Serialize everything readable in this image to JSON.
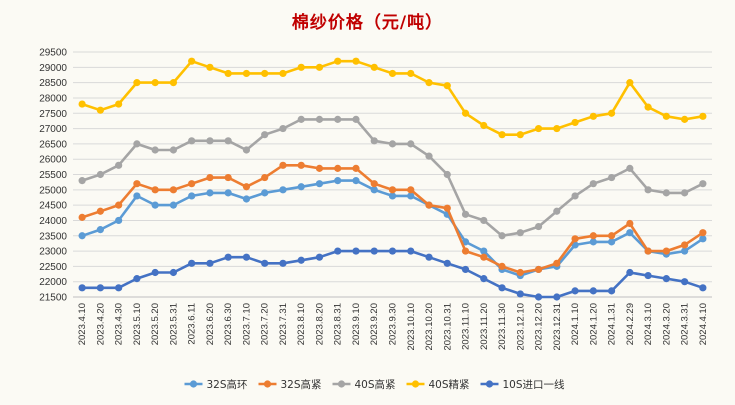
{
  "chart_data": {
    "type": "line",
    "title": "棉纱价格（元/吨）",
    "xlabel": "",
    "ylabel": "",
    "ylim": [
      21500,
      29500
    ],
    "yticks": [
      21500,
      22000,
      22500,
      23000,
      23500,
      24000,
      24500,
      25000,
      25500,
      26000,
      26500,
      27000,
      27500,
      28000,
      28500,
      29000,
      29500
    ],
    "grid": true,
    "legend_position": "bottom",
    "categories": [
      "2023.4.10",
      "2023.4.20",
      "2023.4.30",
      "2023.5.10",
      "2023.5.20",
      "2023.5.31",
      "2023.6.11",
      "2023.6.20",
      "2023.6.30",
      "2023.7.10",
      "2023.7.20",
      "2023.7.31",
      "2023.8.10",
      "2023.8.20",
      "2023.8.31",
      "2023.9.10",
      "2023.9.20",
      "2023.9.30",
      "2023.10.10",
      "2023.10.20",
      "2023.10.31",
      "2023.11.10",
      "2023.11.20",
      "2023.11.30",
      "2023.12.10",
      "2023.12.20",
      "2023.12.31",
      "2024.1.10",
      "2024.1.20",
      "2024.1.31",
      "2024.2.29",
      "2024.3.10",
      "2024.3.20",
      "2024.3.31",
      "2024.4.10"
    ],
    "series": [
      {
        "name": "32S高环",
        "color": "#5b9bd5",
        "values": [
          23500,
          23700,
          24000,
          24800,
          24500,
          24500,
          24800,
          24900,
          24900,
          24700,
          24900,
          25000,
          25100,
          25200,
          25300,
          25300,
          25000,
          24800,
          24800,
          24500,
          24200,
          23300,
          23000,
          22400,
          22200,
          22400,
          22500,
          23200,
          23300,
          23300,
          23600,
          23000,
          22900,
          23000,
          23400
        ]
      },
      {
        "name": "32S高紧",
        "color": "#ed7d31",
        "values": [
          24100,
          24300,
          24500,
          25200,
          25000,
          25000,
          25200,
          25400,
          25400,
          25100,
          25400,
          25800,
          25800,
          25700,
          25700,
          25700,
          25200,
          25000,
          25000,
          24500,
          24400,
          23000,
          22800,
          22500,
          22300,
          22400,
          22600,
          23400,
          23500,
          23500,
          23900,
          23000,
          23000,
          23200,
          23600
        ]
      },
      {
        "name": "40S高紧",
        "color": "#a5a5a5",
        "values": [
          25300,
          25500,
          25800,
          26500,
          26300,
          26300,
          26600,
          26600,
          26600,
          26300,
          26800,
          27000,
          27300,
          27300,
          27300,
          27300,
          26600,
          26500,
          26500,
          26100,
          25500,
          24200,
          24000,
          23500,
          23600,
          23800,
          24300,
          24800,
          25200,
          25400,
          25700,
          25000,
          24900,
          24900,
          25200
        ]
      },
      {
        "name": "40S精紧",
        "color": "#ffc000",
        "values": [
          27800,
          27600,
          27800,
          28500,
          28500,
          28500,
          29200,
          29000,
          28800,
          28800,
          28800,
          28800,
          29000,
          29000,
          29200,
          29200,
          29000,
          28800,
          28800,
          28500,
          28400,
          27500,
          27100,
          26800,
          26800,
          27000,
          27000,
          27200,
          27400,
          27500,
          28500,
          27700,
          27400,
          27300,
          27400
        ]
      },
      {
        "name": "10S进口一线",
        "color": "#4472c4",
        "values": [
          21800,
          21800,
          21800,
          22100,
          22300,
          22300,
          22600,
          22600,
          22800,
          22800,
          22600,
          22600,
          22700,
          22800,
          23000,
          23000,
          23000,
          23000,
          23000,
          22800,
          22600,
          22400,
          22100,
          21800,
          21600,
          21500,
          21500,
          21700,
          21700,
          21700,
          22300,
          22200,
          22100,
          22000,
          21800
        ]
      }
    ]
  }
}
